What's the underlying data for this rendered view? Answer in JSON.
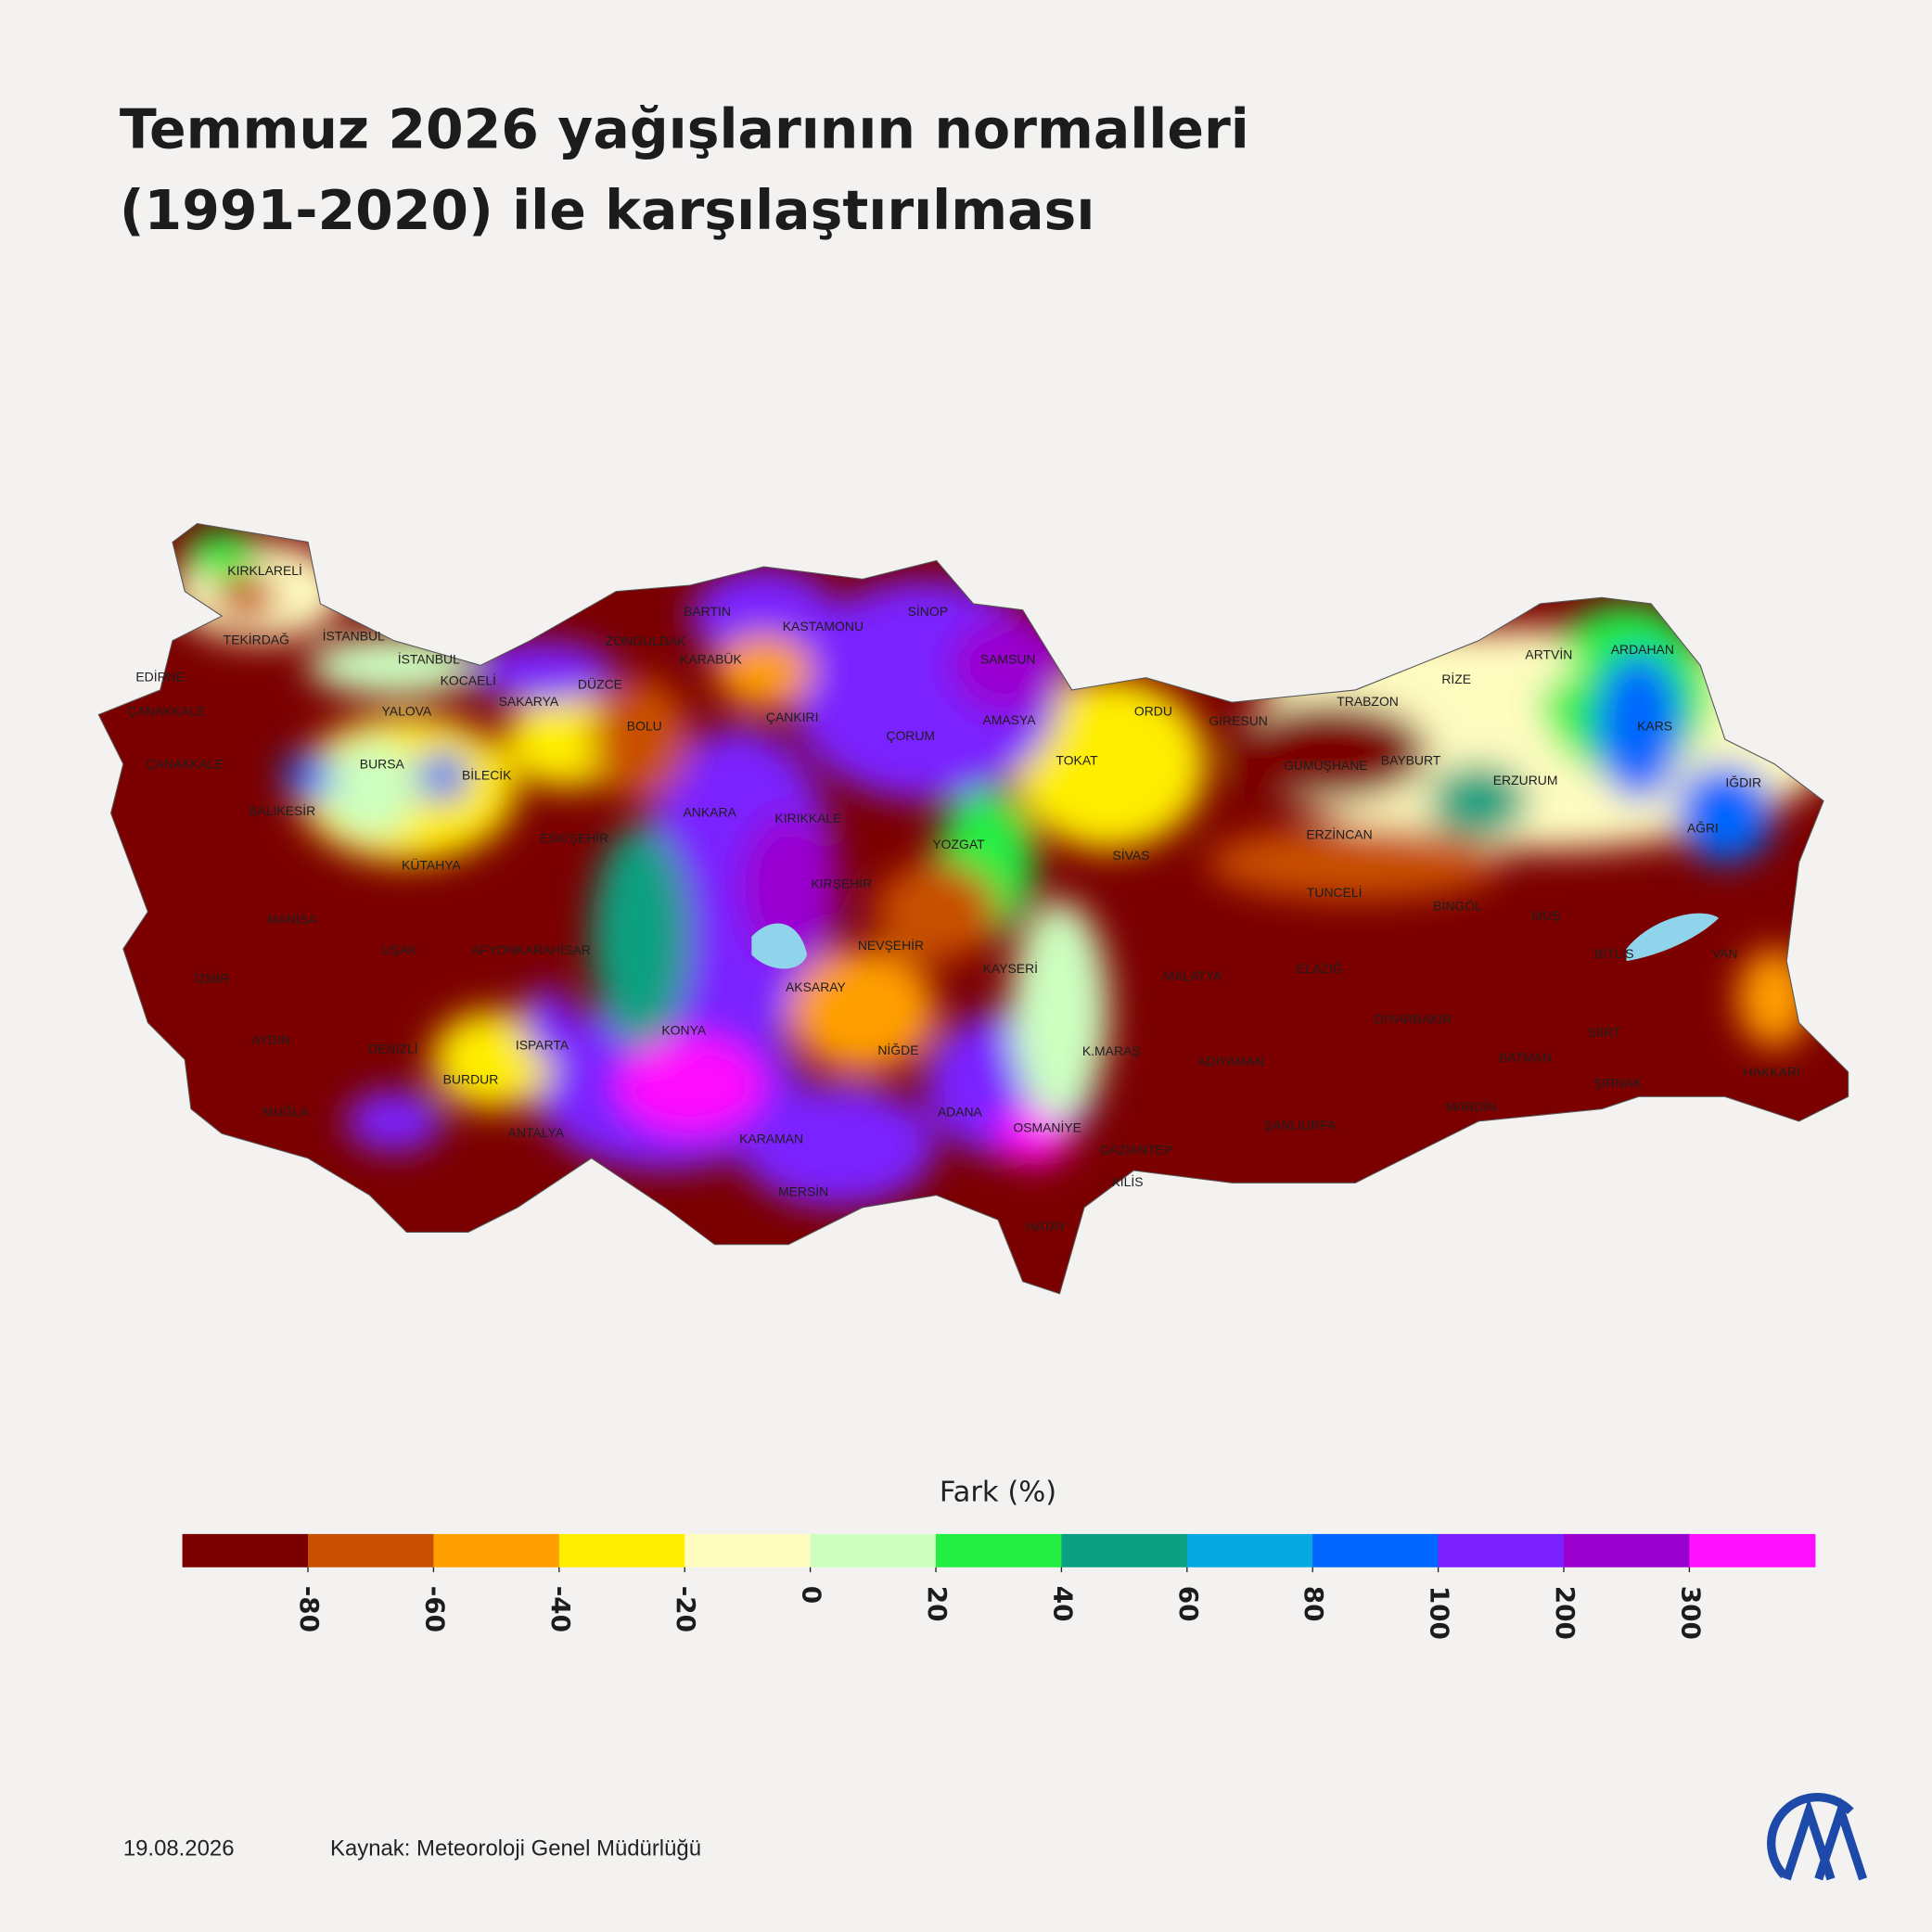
{
  "title": [
    "Temmuz 2026 yağışlarının normalleri",
    "(1991-2020) ile karşılaştırılması"
  ],
  "map": {
    "labels": [
      "KIRKLARELİ",
      "TEKİRDAĞ",
      "İSTANBUL",
      "EDİRNE",
      "İSTANBUL",
      "KOCAELİ",
      "YALOVA",
      "SAKARYA",
      "ÇANAKKALE",
      "ZONGULDAK",
      "BARTIN",
      "KARABÜK",
      "DÜZCE",
      "BOLU",
      "KASTAMONU",
      "SİNOP",
      "SAMSUN",
      "ÇANKIRI",
      "AMASYA",
      "ÇORUM",
      "ORDU",
      "GİRESUN",
      "TRABZON",
      "RİZE",
      "ARTVİN",
      "ARDAHAN",
      "KARS",
      "ÇANAKKALE",
      "BURSA",
      "BİLECİK",
      "BALIKESİR",
      "ANKARA",
      "KIRIKKALE",
      "TOKAT",
      "GÜMÜŞHANE",
      "BAYBURT",
      "ERZURUM",
      "IĞDIR",
      "ESKİŞEHİR",
      "KÜTAHYA",
      "YOZGAT",
      "SİVAS",
      "ERZİNCAN",
      "AĞRI",
      "KIRŞEHİR",
      "TUNCELİ",
      "BİNGÖL",
      "MUŞ",
      "MANİSA",
      "UŞAK",
      "AFYONKARAHİSAR",
      "NEVŞEHİR",
      "BİTLİS",
      "VAN",
      "İZMİR",
      "KAYSERİ",
      "MALATYA",
      "ELAZIĞ",
      "AKSARAY",
      "DİYARBAKIR",
      "SİİRT",
      "AYDIN",
      "DENİZLİ",
      "ISPARTA",
      "KONYA",
      "NİĞDE",
      "K.MARAŞ",
      "BATMAN",
      "ADIYAMAN",
      "HAKKARİ",
      "BURDUR",
      "ŞIRNAK",
      "MUĞLA",
      "ADANA",
      "MARDİN",
      "OSMANİYE",
      "ŞANLIURFA",
      "ANTALYA",
      "KARAMAN",
      "GAZİANTEP",
      "KİLİS",
      "MERSİN",
      "HATAY"
    ]
  },
  "legend": {
    "title": "Fark (%)",
    "colors": [
      "#7b0000",
      "#c85000",
      "#ff9f00",
      "#ffee00",
      "#fffcc0",
      "#ccffc0",
      "#22ee44",
      "#0aa080",
      "#08a8e0",
      "#0066ff",
      "#7a20ff",
      "#9a00d0",
      "#ff10ff"
    ],
    "ticks": [
      -80,
      -60,
      -40,
      -20,
      0,
      20,
      40,
      60,
      80,
      100,
      200,
      300
    ]
  },
  "footer": {
    "date": "19.08.2026",
    "source": "Kaynak: Meteoroloji Genel Müdürlüğü"
  }
}
